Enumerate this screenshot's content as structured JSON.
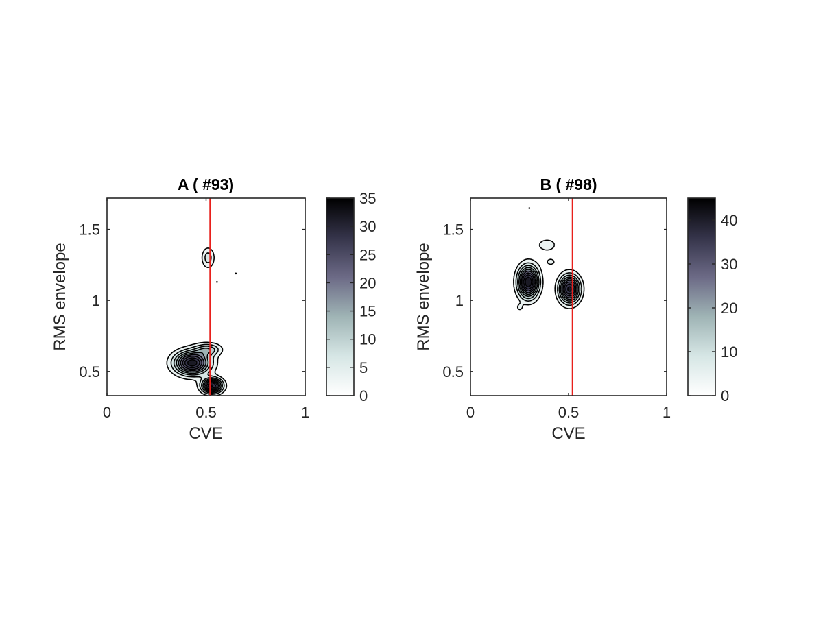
{
  "chart_data": [
    {
      "type": "contour",
      "title": "A ( #93)",
      "xlabel": "CVE",
      "ylabel": "RMS envelope",
      "xlim": [
        0,
        1
      ],
      "ylim": [
        0.33,
        1.72
      ],
      "xticks": [
        0,
        0.5,
        1
      ],
      "xtick_labels": [
        "0",
        "0.5",
        "1"
      ],
      "yticks": [
        0.5,
        1,
        1.5
      ],
      "ytick_labels": [
        "0.5",
        "1",
        "1.5"
      ],
      "reference_line_x": 0.52,
      "reference_line_color": "#e8201c",
      "colorbar": {
        "min": 0,
        "max": 35,
        "ticks": [
          0,
          5,
          10,
          15,
          20,
          25,
          30,
          35
        ],
        "tick_labels": [
          "0",
          "5",
          "10",
          "15",
          "20",
          "25",
          "30",
          "35"
        ],
        "colormap": "bone-reversed"
      },
      "clusters": [
        {
          "cx": 0.43,
          "cy": 0.56,
          "sx": 0.06,
          "sy": 0.055,
          "peak": 34
        },
        {
          "cx": 0.53,
          "cy": 0.4,
          "sx": 0.035,
          "sy": 0.035,
          "peak": 32
        },
        {
          "cx": 0.51,
          "cy": 0.655,
          "sx": 0.045,
          "sy": 0.03,
          "peak": 12
        },
        {
          "cx": 0.51,
          "cy": 1.3,
          "sx": 0.022,
          "sy": 0.05,
          "peak": 9
        }
      ],
      "stray_points": [
        [
          0.555,
          1.13
        ],
        [
          0.65,
          1.19
        ]
      ]
    },
    {
      "type": "contour",
      "title": "B ( #98)",
      "xlabel": "CVE",
      "ylabel": "RMS envelope",
      "xlim": [
        0,
        1
      ],
      "ylim": [
        0.33,
        1.72
      ],
      "xticks": [
        0,
        0.5,
        1
      ],
      "xtick_labels": [
        "0",
        "0.5",
        "1"
      ],
      "yticks": [
        0.5,
        1,
        1.5
      ],
      "ytick_labels": [
        "0.5",
        "1",
        "1.5"
      ],
      "reference_line_x": 0.52,
      "reference_line_color": "#e8201c",
      "colorbar": {
        "min": 0,
        "max": 45,
        "ticks": [
          0,
          10,
          20,
          30,
          40
        ],
        "tick_labels": [
          "0",
          "10",
          "20",
          "30",
          "40"
        ],
        "colormap": "bone-reversed"
      },
      "clusters": [
        {
          "cx": 0.295,
          "cy": 1.13,
          "sx": 0.035,
          "sy": 0.075,
          "peak": 45
        },
        {
          "cx": 0.505,
          "cy": 1.08,
          "sx": 0.035,
          "sy": 0.065,
          "peak": 42
        },
        {
          "cx": 0.39,
          "cy": 1.39,
          "sx": 0.05,
          "sy": 0.045,
          "peak": 6
        },
        {
          "cx": 0.41,
          "cy": 1.27,
          "sx": 0.03,
          "sy": 0.03,
          "peak": 5
        },
        {
          "cx": 0.25,
          "cy": 0.95,
          "sx": 0.013,
          "sy": 0.02,
          "peak": 5
        }
      ],
      "stray_points": [
        [
          0.3,
          1.65
        ]
      ]
    }
  ]
}
